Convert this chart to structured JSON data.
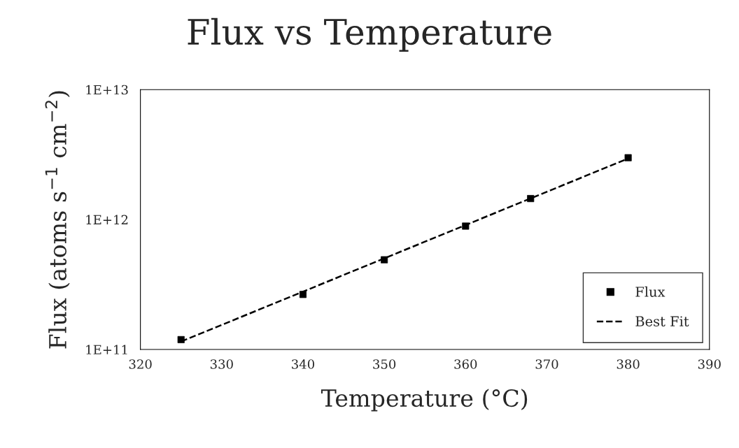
{
  "chart_data": {
    "type": "scatter",
    "title": "Flux vs Temperature",
    "xlabel": "Temperature (°C)",
    "ylabel": "Flux (atoms s$^{−1}$ cm$^{−2}$)",
    "log": "y",
    "xlim": [
      320,
      390
    ],
    "xticks": [
      320,
      330,
      340,
      350,
      360,
      370,
      380,
      390
    ],
    "ylim": [
      100000000000.0,
      10000000000000.0
    ],
    "yticks": [
      {
        "value": 100000000000.0,
        "label": "1E+11"
      },
      {
        "value": 1000000000000.0,
        "label": "1E+12"
      },
      {
        "value": 10000000000000.0,
        "label": "1E+13"
      }
    ],
    "grid": false,
    "legend": "bottom right",
    "series": [
      {
        "name": "Flux",
        "color": "#000000",
        "marker": "square",
        "x": [
          325,
          340,
          350,
          360,
          368,
          380
        ],
        "values": [
          119000000000.0,
          265000000000.0,
          490000000000.0,
          890000000000.0,
          1450000000000.0,
          2990000000000.0
        ]
      },
      {
        "name": "Best Fit",
        "type": "line",
        "color": "#000000",
        "line_style": "dashed",
        "marker": "none",
        "x": [
          325,
          380
        ],
        "values": [
          115000000000.0,
          2950000000000.0
        ]
      }
    ]
  }
}
